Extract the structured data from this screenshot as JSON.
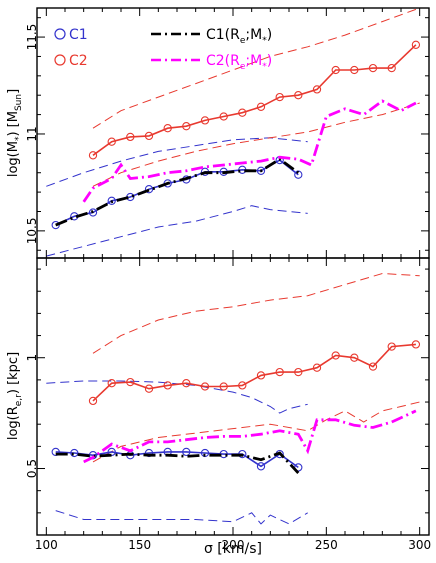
{
  "chart_data": {
    "type": "line",
    "xlabel": "σ [km/s]",
    "xlim": [
      95,
      305
    ],
    "xticks": [
      100,
      150,
      200,
      250,
      300
    ],
    "grid": false,
    "legend_position": "top-left",
    "legend": {
      "c1": "C1",
      "c2": "C2",
      "c1_fit": "C1(R",
      "c1_fit_sub": "e",
      "c1_fit_tail": ";M",
      "c1_fit_sub2": "*",
      "c1_fit_close": ")",
      "c2_fit": "C2(R",
      "c2_fit_sub": "e",
      "c2_fit_tail": ";M",
      "c2_fit_sub2": "*",
      "c2_fit_close": ")"
    },
    "colors": {
      "c1": "#3333cc",
      "c2": "#e8392f",
      "c1_fit": "#000000",
      "c2_fit": "#ff00ff"
    },
    "panels": [
      {
        "id": "top",
        "ylabel_main": "log(M",
        "ylabel_sub": "*",
        "ylabel_tail": ") [M",
        "ylabel_unit_sub": "Sun",
        "ylabel_close": "]",
        "ylim": [
          10.36,
          11.65
        ],
        "yticks": [
          10.5,
          11,
          11.5
        ],
        "ytick_labels": [
          "10.5",
          "11",
          "11.5"
        ],
        "series": [
          {
            "key": "c1_mean",
            "name": "C1",
            "style": "solid-circle",
            "color": "#3333cc",
            "x": [
              105,
              115,
              125,
              135,
              145,
              155,
              165,
              175,
              185,
              195,
              205,
              215,
              225,
              235
            ],
            "y": [
              10.53,
              10.575,
              10.595,
              10.655,
              10.675,
              10.715,
              10.745,
              10.765,
              10.805,
              10.805,
              10.815,
              10.81,
              10.865,
              10.79
            ]
          },
          {
            "key": "c1_upper",
            "style": "dash",
            "color": "#3333cc",
            "x": [
              100,
              120,
              140,
              160,
              180,
              200,
              220,
              240
            ],
            "y": [
              10.73,
              10.8,
              10.86,
              10.91,
              10.94,
              10.97,
              10.98,
              10.96
            ]
          },
          {
            "key": "c1_lower",
            "style": "dash",
            "color": "#3333cc",
            "x": [
              100,
              120,
              140,
              160,
              180,
              200,
              210,
              220,
              230,
              240
            ],
            "y": [
              10.37,
              10.42,
              10.47,
              10.52,
              10.55,
              10.6,
              10.63,
              10.61,
              10.6,
              10.59
            ]
          },
          {
            "key": "c2_mean",
            "name": "C2",
            "style": "solid-circle",
            "color": "#e8392f",
            "x": [
              125,
              135,
              145,
              155,
              165,
              175,
              185,
              195,
              205,
              215,
              225,
              235,
              245,
              255,
              265,
              275,
              285,
              298
            ],
            "y": [
              10.89,
              10.96,
              10.985,
              10.99,
              11.03,
              11.04,
              11.07,
              11.09,
              11.11,
              11.14,
              11.19,
              11.2,
              11.23,
              11.33,
              11.33,
              11.34,
              11.34,
              11.46
            ]
          },
          {
            "key": "c2_upper",
            "style": "dash",
            "color": "#e8392f",
            "x": [
              125,
              140,
              160,
              180,
              200,
              220,
              240,
              260,
              280,
              300
            ],
            "y": [
              11.03,
              11.12,
              11.19,
              11.26,
              11.33,
              11.4,
              11.45,
              11.51,
              11.58,
              11.65
            ]
          },
          {
            "key": "c2_lower",
            "style": "dash",
            "color": "#e8392f",
            "x": [
              125,
              140,
              160,
              180,
              200,
              220,
              240,
              260,
              280,
              300
            ],
            "y": [
              10.73,
              10.8,
              10.86,
              10.91,
              10.95,
              10.98,
              11.01,
              11.06,
              11.1,
              11.16
            ]
          },
          {
            "key": "c1_fit",
            "name": "C1(Re;M*)",
            "style": "dashdot-thick",
            "color": "#000000",
            "x": [
              105,
              115,
              125,
              135,
              145,
              155,
              165,
              175,
              185,
              195,
              205,
              215,
              225,
              235
            ],
            "y": [
              10.53,
              10.57,
              10.6,
              10.65,
              10.675,
              10.71,
              10.745,
              10.77,
              10.8,
              10.8,
              10.81,
              10.81,
              10.87,
              10.8
            ]
          },
          {
            "key": "c2_fit",
            "name": "C2(Re;M*)",
            "style": "dashdot-thick",
            "color": "#ff00ff",
            "x": [
              120,
              125,
              135,
              140,
              145,
              155,
              165,
              175,
              185,
              195,
              205,
              215,
              225,
              235,
              242,
              250,
              260,
              270,
              280,
              290,
              298
            ],
            "y": [
              10.65,
              10.72,
              10.77,
              10.84,
              10.77,
              10.78,
              10.8,
              10.81,
              10.83,
              10.84,
              10.85,
              10.86,
              10.88,
              10.87,
              10.84,
              11.09,
              11.13,
              11.1,
              11.17,
              11.12,
              11.16
            ]
          }
        ]
      },
      {
        "id": "bottom",
        "ylabel_main": "log(R",
        "ylabel_sub": "e,r",
        "ylabel_tail": ") [kpc]",
        "ylim": [
          0.2,
          1.45
        ],
        "yticks": [
          0.5,
          1
        ],
        "ytick_labels": [
          "0.5",
          "1"
        ],
        "series": [
          {
            "key": "c1_mean",
            "style": "solid-circle",
            "color": "#3333cc",
            "x": [
              105,
              115,
              125,
              135,
              145,
              155,
              165,
              175,
              185,
              195,
              205,
              215,
              225,
              235
            ],
            "y": [
              0.575,
              0.57,
              0.56,
              0.575,
              0.56,
              0.57,
              0.575,
              0.575,
              0.57,
              0.565,
              0.565,
              0.51,
              0.565,
              0.505
            ]
          },
          {
            "key": "c1_upper",
            "style": "dash",
            "color": "#3333cc",
            "x": [
              100,
              120,
              140,
              160,
              180,
              200,
              210,
              220,
              225,
              230,
              240
            ],
            "y": [
              0.885,
              0.895,
              0.895,
              0.89,
              0.875,
              0.845,
              0.82,
              0.78,
              0.75,
              0.77,
              0.79
            ]
          },
          {
            "key": "c1_lower",
            "style": "dash",
            "color": "#3333cc",
            "x": [
              105,
              120,
              140,
              160,
              180,
              200,
              210,
              215,
              220,
              230,
              240
            ],
            "y": [
              0.31,
              0.27,
              0.27,
              0.27,
              0.27,
              0.26,
              0.3,
              0.25,
              0.29,
              0.25,
              0.3
            ]
          },
          {
            "key": "c2_mean",
            "style": "solid-circle",
            "color": "#e8392f",
            "x": [
              125,
              135,
              145,
              155,
              165,
              175,
              185,
              195,
              205,
              215,
              225,
              235,
              245,
              255,
              265,
              275,
              285,
              298
            ],
            "y": [
              0.805,
              0.885,
              0.89,
              0.86,
              0.875,
              0.885,
              0.87,
              0.87,
              0.875,
              0.92,
              0.935,
              0.935,
              0.955,
              1.01,
              1.0,
              0.96,
              1.05,
              1.06
            ]
          },
          {
            "key": "c2_upper",
            "style": "dash",
            "color": "#e8392f",
            "x": [
              125,
              140,
              160,
              180,
              200,
              220,
              240,
              260,
              280,
              300
            ],
            "y": [
              1.02,
              1.1,
              1.17,
              1.21,
              1.23,
              1.26,
              1.28,
              1.33,
              1.38,
              1.37
            ]
          },
          {
            "key": "c2_lower",
            "style": "dash",
            "color": "#e8392f",
            "x": [
              125,
              140,
              160,
              180,
              200,
              220,
              240,
              250,
              260,
              270,
              280,
              290,
              300
            ],
            "y": [
              0.53,
              0.6,
              0.64,
              0.66,
              0.68,
              0.7,
              0.67,
              0.72,
              0.76,
              0.71,
              0.76,
              0.78,
              0.8
            ]
          },
          {
            "key": "c1_fit",
            "style": "dashdot-thick",
            "color": "#000000",
            "x": [
              105,
              115,
              125,
              135,
              145,
              155,
              165,
              175,
              185,
              195,
              205,
              215,
              225,
              235
            ],
            "y": [
              0.565,
              0.565,
              0.555,
              0.56,
              0.565,
              0.56,
              0.56,
              0.555,
              0.56,
              0.56,
              0.56,
              0.54,
              0.57,
              0.48
            ]
          },
          {
            "key": "c2_fit",
            "style": "dashdot-thick",
            "color": "#ff00ff",
            "x": [
              120,
              125,
              135,
              145,
              155,
              165,
              175,
              185,
              195,
              205,
              215,
              225,
              235,
              240,
              245,
              255,
              265,
              275,
              285,
              298
            ],
            "y": [
              0.53,
              0.55,
              0.61,
              0.58,
              0.62,
              0.62,
              0.63,
              0.64,
              0.645,
              0.645,
              0.655,
              0.67,
              0.655,
              0.58,
              0.72,
              0.72,
              0.695,
              0.685,
              0.71,
              0.76
            ]
          }
        ]
      }
    ]
  }
}
